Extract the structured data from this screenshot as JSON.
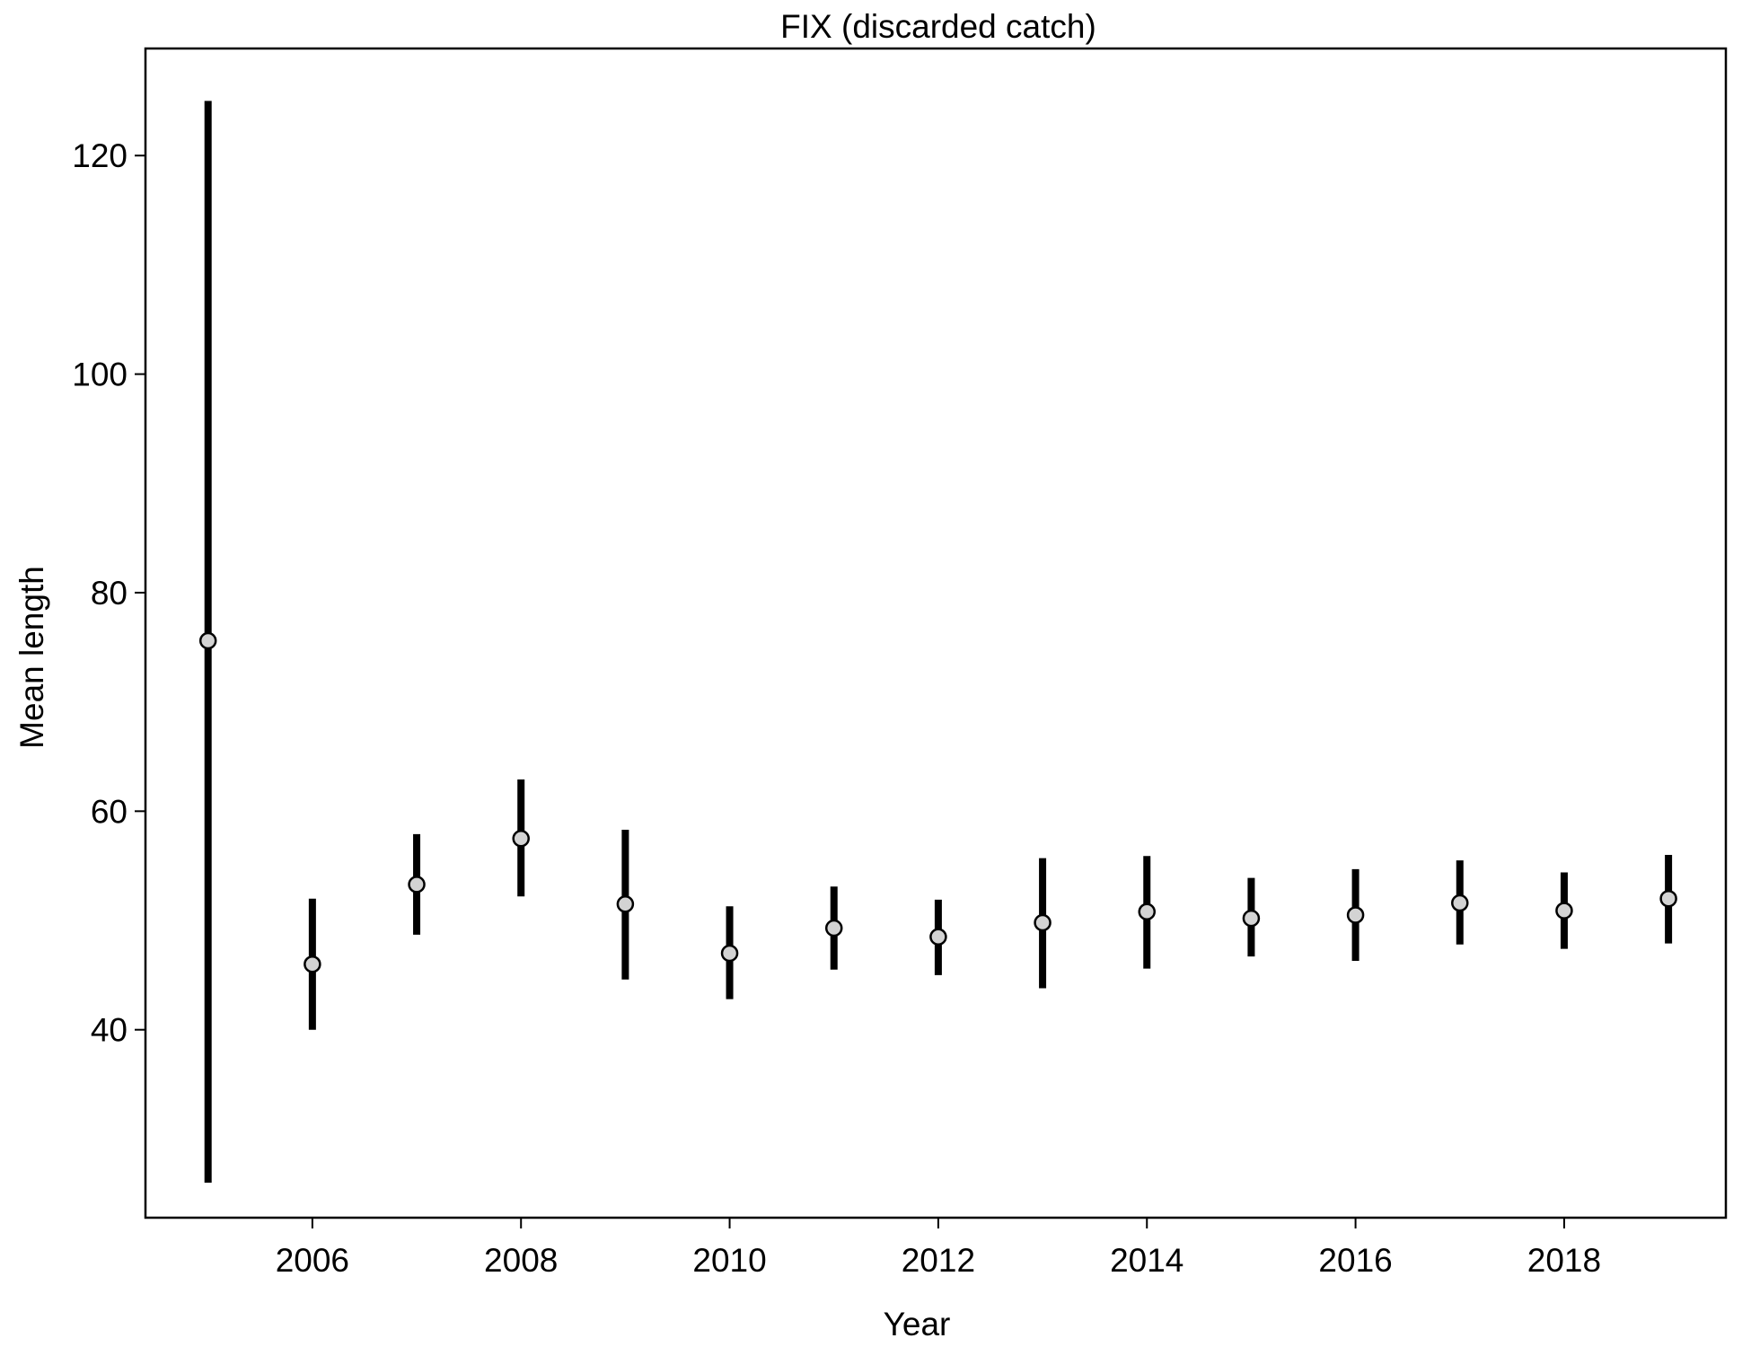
{
  "chart_data": {
    "type": "scatter",
    "title": "FIX (discarded catch)",
    "xlabel": "Year",
    "ylabel": "Mean length",
    "xlim": [
      2004.4,
      2019.55
    ],
    "ylim": [
      22.8,
      129.8
    ],
    "x_ticks": [
      2006,
      2008,
      2010,
      2012,
      2014,
      2016,
      2018
    ],
    "x_tick_labels": [
      "2006",
      "2008",
      "2010",
      "2012",
      "2014",
      "2016",
      "2018"
    ],
    "y_ticks": [
      40,
      60,
      80,
      100,
      120
    ],
    "y_tick_labels": [
      "40",
      "60",
      "80",
      "100",
      "120"
    ],
    "grid": false,
    "legend": "none",
    "series": [
      {
        "x": [
          2005,
          2006,
          2007,
          2008,
          2009,
          2010,
          2011,
          2012,
          2013,
          2014,
          2015,
          2016,
          2017,
          2018,
          2019
        ],
        "y": [
          75.6,
          46.0,
          53.3,
          57.5,
          51.5,
          47.0,
          49.3,
          48.5,
          49.8,
          50.8,
          50.2,
          50.5,
          51.6,
          50.9,
          52.0
        ],
        "lower": [
          26.0,
          40.0,
          48.7,
          52.2,
          44.6,
          42.8,
          45.5,
          45.0,
          43.8,
          45.6,
          46.7,
          46.3,
          47.8,
          47.4,
          47.9
        ],
        "upper": [
          125.0,
          52.0,
          57.9,
          62.9,
          58.3,
          51.3,
          53.1,
          51.9,
          55.7,
          55.9,
          53.9,
          54.7,
          55.5,
          54.4,
          56.0
        ]
      }
    ],
    "colors": {
      "point_fill": "#d3d3d3",
      "point_stroke": "#000000",
      "bar": "#000000",
      "axis": "#000000"
    }
  }
}
